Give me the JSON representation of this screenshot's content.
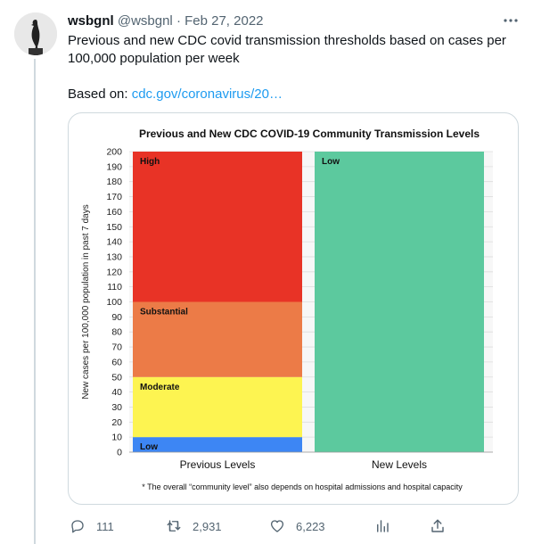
{
  "tweet": {
    "name": "wsbgnl",
    "handle": "@wsbgnl",
    "separator": "·",
    "date": "Feb 27, 2022",
    "text": "Previous and new CDC covid transmission thresholds based on cases per 100,000 population per week",
    "based_prefix": "Based on: ",
    "link_text": "cdc.gov/coronavirus/20…"
  },
  "icons": {
    "more": "more-horizontal-icon",
    "reply": "reply-icon",
    "retweet": "retweet-icon",
    "like": "heart-icon",
    "analytics": "analytics-icon",
    "share": "share-icon"
  },
  "actions": {
    "reply_count": "111",
    "retweet_count": "2,931",
    "like_count": "6,223"
  },
  "chart_data": {
    "type": "bar",
    "stacked": true,
    "title": "Previous and New CDC COVID-19 Community Transmission Levels",
    "ylabel": "New cases per 100,000 population in past 7 days",
    "xlabel": "",
    "ylim": [
      0,
      200
    ],
    "ytick_step": 10,
    "grid": true,
    "categories": [
      "Previous Levels",
      "New Levels"
    ],
    "bars": [
      {
        "category": "Previous Levels",
        "segments": [
          {
            "label": "Low",
            "from": 0,
            "to": 10,
            "color": "#3d86f4"
          },
          {
            "label": "Moderate",
            "from": 10,
            "to": 50,
            "color": "#fdf451"
          },
          {
            "label": "Substantial",
            "from": 50,
            "to": 100,
            "color": "#ec7b47"
          },
          {
            "label": "High",
            "from": 100,
            "to": 200,
            "color": "#e83326"
          }
        ]
      },
      {
        "category": "New Levels",
        "segments": [
          {
            "label": "Low",
            "from": 0,
            "to": 200,
            "color": "#5cc99e"
          }
        ]
      }
    ],
    "footnote": "* The overall “community level” also depends on hospital admissions and hospital capacity"
  }
}
